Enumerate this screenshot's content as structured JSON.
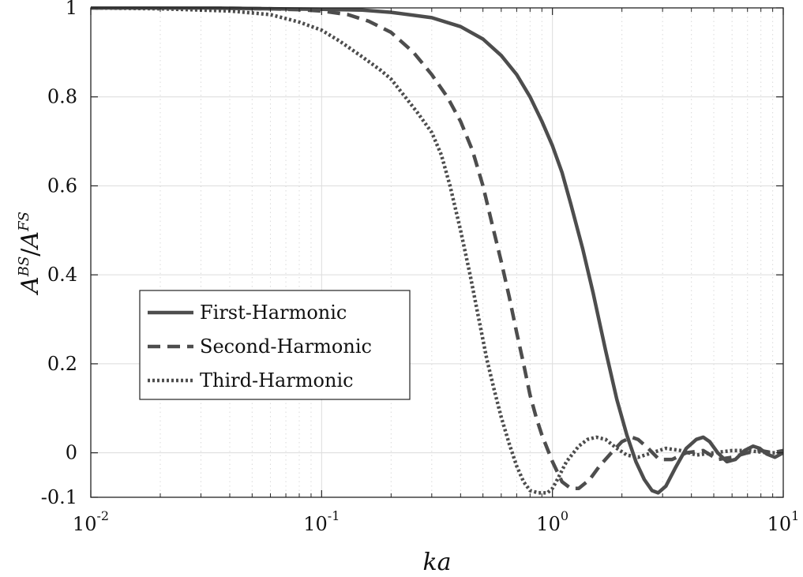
{
  "chart_data": {
    "type": "line",
    "xscale": "log",
    "xlim": [
      0.01,
      10
    ],
    "ylim": [
      -0.1,
      1
    ],
    "grid": true,
    "legend_position": "center-left",
    "xlabel": "ka",
    "ylabel": {
      "base1": "A",
      "sup1": "BS",
      "sep": "/",
      "base2": "A",
      "sup2": "FS"
    },
    "x_ticks": [
      {
        "value": 0.01,
        "base": "10",
        "exp": "-2"
      },
      {
        "value": 0.1,
        "base": "10",
        "exp": "-1"
      },
      {
        "value": 1,
        "base": "10",
        "exp": "0"
      },
      {
        "value": 10,
        "base": "10",
        "exp": "1"
      }
    ],
    "y_ticks": [
      {
        "value": 1,
        "label": "1"
      },
      {
        "value": 0.8,
        "label": "0.8"
      },
      {
        "value": 0.6,
        "label": "0.6"
      },
      {
        "value": 0.4,
        "label": "0.4"
      },
      {
        "value": 0.2,
        "label": "0.2"
      },
      {
        "value": 0,
        "label": "0"
      },
      {
        "value": -0.1,
        "label": "-0.1"
      }
    ],
    "series": [
      {
        "name": "First-Harmonic",
        "style": "solid",
        "color": "#4d4d4d",
        "x": [
          0.01,
          0.03,
          0.06,
          0.1,
          0.15,
          0.2,
          0.3,
          0.4,
          0.5,
          0.6,
          0.7,
          0.8,
          0.9,
          1.0,
          1.1,
          1.2,
          1.35,
          1.5,
          1.7,
          1.9,
          2.1,
          2.3,
          2.5,
          2.7,
          2.87,
          3.1,
          3.4,
          3.8,
          4.2,
          4.5,
          4.8,
          5.2,
          5.7,
          6.2,
          6.8,
          7.4,
          7.9,
          8.5,
          9.2,
          10
        ],
        "y": [
          1.0,
          1.0,
          0.998,
          0.997,
          0.995,
          0.99,
          0.978,
          0.958,
          0.93,
          0.893,
          0.85,
          0.8,
          0.745,
          0.69,
          0.63,
          0.56,
          0.46,
          0.36,
          0.23,
          0.12,
          0.04,
          -0.02,
          -0.06,
          -0.085,
          -0.09,
          -0.075,
          -0.035,
          0.01,
          0.03,
          0.035,
          0.025,
          0.0,
          -0.02,
          -0.015,
          0.005,
          0.015,
          0.01,
          -0.003,
          -0.01,
          0.0
        ]
      },
      {
        "name": "Second-Harmonic",
        "style": "dashed",
        "color": "#4d4d4d",
        "x": [
          0.01,
          0.03,
          0.06,
          0.08,
          0.1,
          0.13,
          0.16,
          0.2,
          0.25,
          0.3,
          0.35,
          0.4,
          0.45,
          0.5,
          0.55,
          0.6,
          0.65,
          0.7,
          0.75,
          0.8,
          0.85,
          0.9,
          1.0,
          1.1,
          1.2,
          1.3,
          1.45,
          1.6,
          1.8,
          2.0,
          2.2,
          2.35,
          2.6,
          2.9,
          3.3,
          3.8,
          4.5,
          5.2,
          6.0,
          7.0,
          8.0,
          9.0,
          10
        ],
        "y": [
          1.0,
          1.0,
          0.998,
          0.996,
          0.993,
          0.985,
          0.97,
          0.945,
          0.9,
          0.85,
          0.8,
          0.745,
          0.68,
          0.6,
          0.51,
          0.43,
          0.35,
          0.27,
          0.2,
          0.13,
          0.08,
          0.04,
          -0.02,
          -0.065,
          -0.08,
          -0.08,
          -0.06,
          -0.03,
          0.0,
          0.025,
          0.035,
          0.03,
          0.01,
          -0.015,
          -0.015,
          0.0,
          0.005,
          -0.015,
          -0.01,
          0.0,
          0.005,
          0.0,
          0.005
        ]
      },
      {
        "name": "Third-Harmonic",
        "style": "dotted",
        "color": "#4d4d4d",
        "x": [
          0.01,
          0.02,
          0.04,
          0.06,
          0.08,
          0.1,
          0.12,
          0.15,
          0.18,
          0.2,
          0.23,
          0.26,
          0.3,
          0.33,
          0.36,
          0.4,
          0.44,
          0.48,
          0.52,
          0.56,
          0.6,
          0.65,
          0.7,
          0.75,
          0.8,
          0.87,
          0.95,
          1.0,
          1.05,
          1.15,
          1.3,
          1.42,
          1.55,
          1.7,
          1.9,
          2.1,
          2.35,
          2.7,
          3.1,
          3.6,
          4.2,
          5.0,
          6.0,
          7.0,
          8.5,
          10
        ],
        "y": [
          1.0,
          0.998,
          0.993,
          0.985,
          0.968,
          0.95,
          0.925,
          0.89,
          0.86,
          0.84,
          0.8,
          0.765,
          0.72,
          0.67,
          0.6,
          0.5,
          0.4,
          0.3,
          0.21,
          0.14,
          0.08,
          0.02,
          -0.03,
          -0.065,
          -0.085,
          -0.09,
          -0.09,
          -0.08,
          -0.06,
          -0.02,
          0.015,
          0.03,
          0.035,
          0.03,
          0.01,
          -0.005,
          -0.01,
          0.0,
          0.01,
          0.005,
          -0.005,
          0.0,
          0.005,
          0.005,
          0.0,
          0.0
        ]
      }
    ]
  }
}
